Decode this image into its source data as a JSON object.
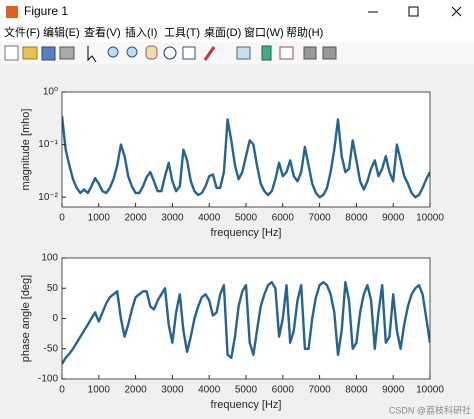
{
  "window": {
    "title": "Figure 1"
  },
  "menu": [
    "文件(F)",
    "编辑(E)",
    "查看(V)",
    "插入(I)",
    "工具(T)",
    "桌面(D)",
    "窗口(W)",
    "帮助(H)"
  ],
  "watermark": "CSDN @荔枝科研社",
  "chart_data": [
    {
      "type": "line",
      "ylabel": "magnitude [mho]",
      "xlabel": "frequency [Hz]",
      "color": "#26648f",
      "log_y": true,
      "xlim": [
        0,
        10000
      ],
      "xticks": [
        0,
        1000,
        2000,
        3000,
        4000,
        5000,
        6000,
        7000,
        8000,
        9000,
        10000
      ],
      "ylim": [
        0.0065,
        1
      ],
      "yticks": [
        {
          "value": 0.01,
          "label": "10⁻²"
        },
        {
          "value": 0.1,
          "label": "10⁻¹"
        },
        {
          "value": 1,
          "label": "10⁰"
        }
      ],
      "x": [
        0,
        100,
        200,
        300,
        400,
        500,
        600,
        700,
        800,
        900,
        1000,
        1100,
        1200,
        1300,
        1400,
        1500,
        1600,
        1700,
        1800,
        1900,
        2000,
        2100,
        2200,
        2300,
        2400,
        2500,
        2600,
        2700,
        2800,
        2900,
        3000,
        3100,
        3200,
        3300,
        3400,
        3500,
        3600,
        3700,
        3800,
        3900,
        4000,
        4100,
        4200,
        4300,
        4400,
        4500,
        4600,
        4700,
        4800,
        4900,
        5000,
        5100,
        5200,
        5300,
        5400,
        5500,
        5600,
        5700,
        5800,
        5900,
        6000,
        6100,
        6200,
        6300,
        6400,
        6500,
        6600,
        6700,
        6800,
        6900,
        7000,
        7100,
        7200,
        7300,
        7400,
        7500,
        7600,
        7700,
        7800,
        7900,
        8000,
        8100,
        8200,
        8300,
        8400,
        8500,
        8600,
        8700,
        8800,
        8900,
        9000,
        9100,
        9200,
        9300,
        9400,
        9500,
        9600,
        9700,
        9800,
        9900,
        10000
      ],
      "values": [
        0.35,
        0.08,
        0.04,
        0.022,
        0.015,
        0.012,
        0.014,
        0.012,
        0.016,
        0.023,
        0.018,
        0.013,
        0.012,
        0.015,
        0.022,
        0.04,
        0.1,
        0.06,
        0.025,
        0.016,
        0.012,
        0.012,
        0.016,
        0.024,
        0.03,
        0.02,
        0.013,
        0.013,
        0.025,
        0.045,
        0.02,
        0.013,
        0.016,
        0.08,
        0.05,
        0.02,
        0.013,
        0.011,
        0.012,
        0.016,
        0.025,
        0.027,
        0.015,
        0.015,
        0.03,
        0.3,
        0.12,
        0.04,
        0.022,
        0.03,
        0.06,
        0.12,
        0.1,
        0.04,
        0.018,
        0.013,
        0.011,
        0.013,
        0.022,
        0.045,
        0.025,
        0.03,
        0.05,
        0.025,
        0.02,
        0.03,
        0.09,
        0.04,
        0.018,
        0.012,
        0.01,
        0.011,
        0.015,
        0.03,
        0.08,
        0.3,
        0.06,
        0.03,
        0.035,
        0.12,
        0.05,
        0.02,
        0.014,
        0.02,
        0.035,
        0.05,
        0.025,
        0.035,
        0.06,
        0.03,
        0.02,
        0.1,
        0.05,
        0.025,
        0.018,
        0.012,
        0.01,
        0.011,
        0.015,
        0.022,
        0.03
      ]
    },
    {
      "type": "line",
      "ylabel": "phase angle [deg]",
      "xlabel": "frequency [Hz]",
      "color": "#26648f",
      "log_y": false,
      "xlim": [
        0,
        10000
      ],
      "xticks": [
        0,
        1000,
        2000,
        3000,
        4000,
        5000,
        6000,
        7000,
        8000,
        9000,
        10000
      ],
      "ylim": [
        -100,
        100
      ],
      "yticks": [
        -100,
        -50,
        0,
        50,
        100
      ],
      "x": [
        0,
        100,
        200,
        300,
        400,
        500,
        600,
        700,
        800,
        900,
        1000,
        1100,
        1200,
        1300,
        1400,
        1500,
        1600,
        1700,
        1800,
        1900,
        2000,
        2100,
        2200,
        2300,
        2400,
        2500,
        2600,
        2700,
        2800,
        2900,
        3000,
        3100,
        3200,
        3300,
        3400,
        3500,
        3600,
        3700,
        3800,
        3900,
        4000,
        4100,
        4200,
        4300,
        4400,
        4500,
        4600,
        4700,
        4800,
        4900,
        5000,
        5100,
        5200,
        5300,
        5400,
        5500,
        5600,
        5700,
        5800,
        5900,
        6000,
        6100,
        6200,
        6300,
        6400,
        6500,
        6600,
        6700,
        6800,
        6900,
        7000,
        7100,
        7200,
        7300,
        7400,
        7500,
        7600,
        7700,
        7800,
        7900,
        8000,
        8100,
        8200,
        8300,
        8400,
        8500,
        8600,
        8700,
        8800,
        8900,
        9000,
        9100,
        9200,
        9300,
        9400,
        9500,
        9600,
        9700,
        9800,
        9900,
        10000
      ],
      "values": [
        -75,
        -65,
        -58,
        -50,
        -40,
        -30,
        -20,
        -10,
        0,
        10,
        -5,
        10,
        25,
        35,
        40,
        45,
        0,
        -30,
        -10,
        15,
        35,
        40,
        45,
        45,
        20,
        15,
        30,
        40,
        50,
        -10,
        -40,
        10,
        40,
        -20,
        -55,
        -30,
        0,
        20,
        35,
        40,
        30,
        5,
        10,
        40,
        55,
        -60,
        -65,
        -30,
        20,
        45,
        55,
        -40,
        -60,
        -20,
        20,
        40,
        55,
        60,
        50,
        -30,
        0,
        55,
        -40,
        -20,
        30,
        55,
        -50,
        -50,
        0,
        35,
        55,
        60,
        55,
        40,
        10,
        -60,
        -20,
        60,
        30,
        -50,
        -40,
        10,
        40,
        55,
        30,
        -50,
        10,
        55,
        -40,
        -30,
        40,
        -20,
        -50,
        -10,
        20,
        40,
        50,
        55,
        40,
        0,
        -40
      ]
    }
  ]
}
